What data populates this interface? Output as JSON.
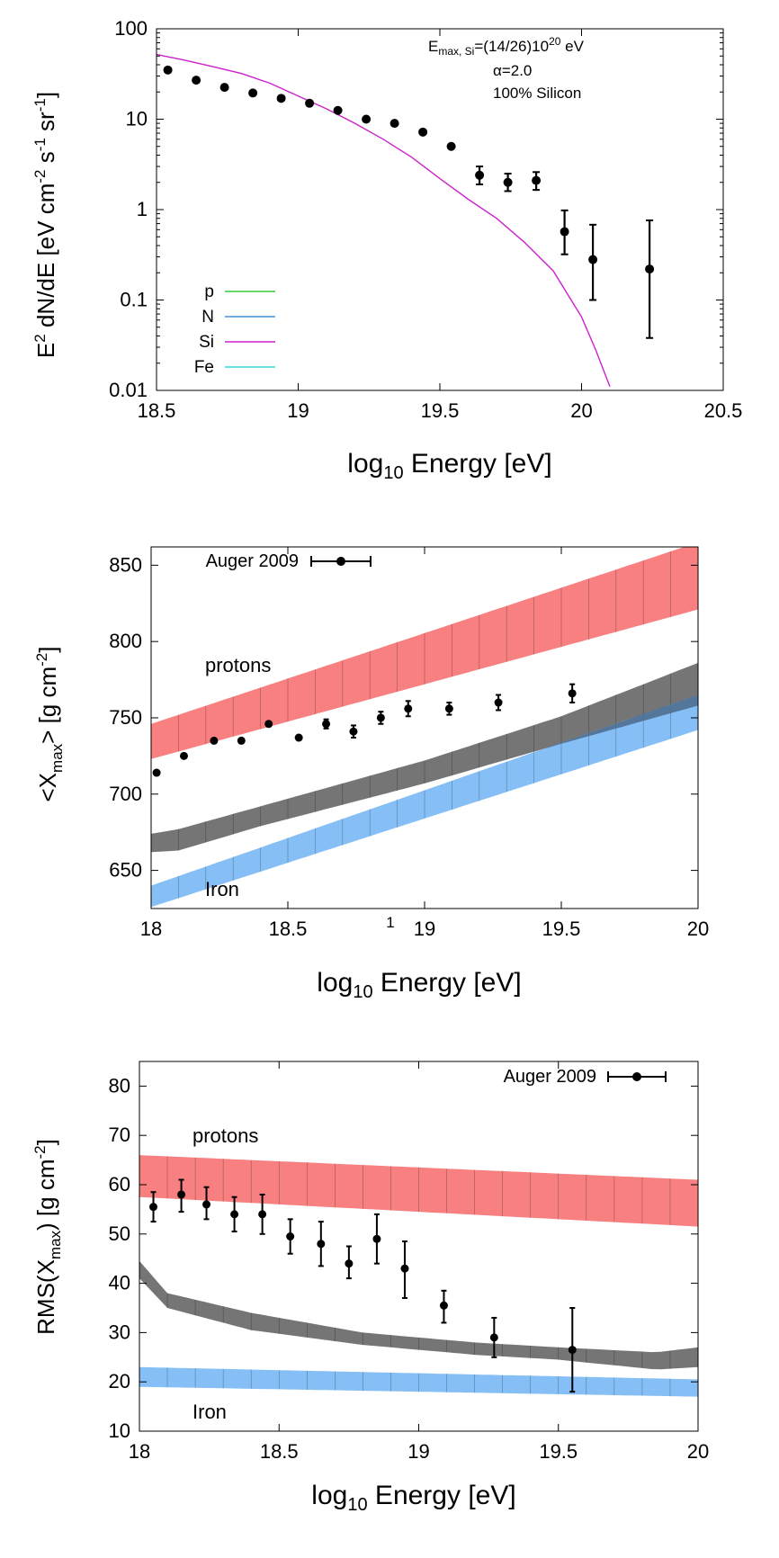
{
  "page_number": "1",
  "colors": {
    "protons_band": "#f87979",
    "mixed_band": "#6e6e6e",
    "iron_band": "#7fbcf5",
    "overlap_band": "#4f6f90",
    "legend_p": "#33cc33",
    "legend_N": "#3c8fdc",
    "legend_Si": "#cc22cc",
    "legend_Fe": "#33d8d8",
    "data_points": "#000000"
  },
  "chart_data": [
    {
      "type": "line",
      "title": "",
      "xlabel_main": "log",
      "xlabel_sub": "10",
      "xlabel_rest": " Energy [eV]",
      "ylabel": "E² dN/dE [eV cm⁻² s⁻¹ sr⁻¹]",
      "xlim": [
        18.5,
        20.5
      ],
      "ylim": [
        0.01,
        100
      ],
      "yscale": "log",
      "xticks": [
        "18.5",
        "19",
        "19.5",
        "20",
        "20.5"
      ],
      "yticks": [
        "0.01",
        "0.1",
        "1",
        "10",
        "100"
      ],
      "annotation_lines": [
        "E(max, Si)=(14/26)10^20 eV",
        "α=2.0",
        "100% Silicon"
      ],
      "legend": [
        {
          "label": "p",
          "color": "#33cc33"
        },
        {
          "label": "N",
          "color": "#3c8fdc"
        },
        {
          "label": "Si",
          "color": "#cc22cc"
        },
        {
          "label": "Fe",
          "color": "#33d8d8"
        }
      ],
      "series": [
        {
          "name": "Si",
          "kind": "curve",
          "x": [
            18.5,
            18.6,
            18.7,
            18.8,
            18.9,
            19.0,
            19.1,
            19.2,
            19.3,
            19.4,
            19.5,
            19.6,
            19.7,
            19.8,
            19.9,
            20.0,
            20.05,
            20.1
          ],
          "y": [
            52,
            45,
            38,
            32,
            25,
            18,
            13,
            9,
            6,
            3.8,
            2.2,
            1.3,
            0.8,
            0.43,
            0.21,
            0.065,
            0.028,
            0.011
          ]
        },
        {
          "name": "data",
          "kind": "points",
          "x": [
            18.54,
            18.64,
            18.74,
            18.84,
            18.94,
            19.04,
            19.14,
            19.24,
            19.34,
            19.44,
            19.54,
            19.64,
            19.74,
            19.84,
            19.94,
            20.04,
            20.24
          ],
          "y": [
            35,
            27,
            22.5,
            19.5,
            17,
            15,
            12.5,
            10,
            9,
            7.2,
            5,
            2.4,
            2.0,
            2.1,
            0.57,
            0.28,
            0.22
          ],
          "err_low": [
            null,
            null,
            null,
            null,
            null,
            null,
            null,
            null,
            null,
            null,
            null,
            1.9,
            1.6,
            1.65,
            0.32,
            0.1,
            0.038
          ],
          "err_high": [
            null,
            null,
            null,
            null,
            null,
            null,
            null,
            null,
            null,
            null,
            null,
            3.0,
            2.5,
            2.6,
            0.98,
            0.68,
            0.76
          ]
        }
      ]
    },
    {
      "type": "scatter",
      "title": "",
      "xlabel_main": "log",
      "xlabel_sub": "10",
      "xlabel_rest": " Energy [eV]",
      "ylabel": "<Xmax> [g cm⁻²]",
      "xlim": [
        18,
        20
      ],
      "ylim": [
        625,
        862
      ],
      "xticks": [
        "18",
        "18.5",
        "19",
        "19.5",
        "20"
      ],
      "yticks": [
        "650",
        "700",
        "750",
        "800",
        "850"
      ],
      "legend": [
        {
          "label": "Auger 2009"
        }
      ],
      "band_labels": {
        "protons": "protons",
        "iron": "Iron"
      },
      "bands": [
        {
          "name": "protons",
          "color": "#f87979",
          "x": [
            18.0,
            20.0
          ],
          "low": [
            723,
            821
          ],
          "high": [
            746,
            865
          ]
        },
        {
          "name": "mixed",
          "color": "#6e6e6e",
          "x": [
            18.0,
            18.1,
            18.4,
            19.0,
            19.5,
            20.0
          ],
          "low": [
            662,
            663,
            679,
            707,
            733,
            758
          ],
          "high": [
            674,
            677,
            692,
            722,
            751,
            786
          ]
        },
        {
          "name": "iron",
          "color": "#7fbcf5",
          "x": [
            18.0,
            20.0
          ],
          "low": [
            626,
            742
          ],
          "high": [
            640,
            765
          ]
        }
      ],
      "series": [
        {
          "name": "Auger 2009",
          "x": [
            18.02,
            18.12,
            18.23,
            18.33,
            18.43,
            18.54,
            18.64,
            18.74,
            18.84,
            18.94,
            19.09,
            19.27,
            19.54
          ],
          "y": [
            714,
            725,
            735,
            735,
            746,
            737,
            746,
            741,
            750,
            756,
            756,
            760,
            766
          ],
          "err": [
            2,
            2,
            2,
            2,
            2,
            2,
            3,
            4,
            4,
            5,
            4,
            5,
            6
          ]
        }
      ]
    },
    {
      "type": "scatter",
      "title": "",
      "xlabel_main": "log",
      "xlabel_sub": "10",
      "xlabel_rest": " Energy [eV]",
      "ylabel": "RMS(Xmax) [g cm⁻²]",
      "xlim": [
        18,
        20
      ],
      "ylim": [
        10,
        85
      ],
      "xticks": [
        "18",
        "18.5",
        "19",
        "19.5",
        "20"
      ],
      "yticks": [
        "10",
        "20",
        "30",
        "40",
        "50",
        "60",
        "70",
        "80"
      ],
      "legend": [
        {
          "label": "Auger 2009"
        }
      ],
      "band_labels": {
        "protons": "protons",
        "iron": "Iron"
      },
      "bands": [
        {
          "name": "protons",
          "color": "#f87979",
          "x": [
            18.0,
            20.0
          ],
          "low": [
            57.5,
            51.5
          ],
          "high": [
            66,
            61
          ]
        },
        {
          "name": "mixed",
          "color": "#6e6e6e",
          "x": [
            18.0,
            18.1,
            18.4,
            18.8,
            19.2,
            19.5,
            19.85,
            20.0
          ],
          "low": [
            41,
            35,
            30.5,
            27.5,
            25.5,
            24.5,
            22.5,
            23
          ],
          "high": [
            44.5,
            38,
            34,
            30,
            28,
            27,
            26,
            27
          ]
        },
        {
          "name": "iron",
          "color": "#7fbcf5",
          "x": [
            18.0,
            20.0
          ],
          "low": [
            19,
            17
          ],
          "high": [
            23,
            20.5
          ]
        }
      ],
      "series": [
        {
          "name": "Auger 2009",
          "x": [
            18.05,
            18.15,
            18.24,
            18.34,
            18.44,
            18.54,
            18.65,
            18.75,
            18.85,
            18.95,
            19.09,
            19.27,
            19.55
          ],
          "y": [
            55.5,
            58,
            56,
            54,
            54,
            49.5,
            48,
            44,
            49,
            43,
            35.5,
            29,
            26.5
          ],
          "err_low": [
            52.5,
            54.5,
            53,
            50.5,
            50,
            46,
            43.5,
            41,
            44,
            37,
            32,
            25,
            18
          ],
          "err_high": [
            58.5,
            61,
            59.5,
            57.5,
            58,
            53,
            52.5,
            47.5,
            54,
            48.5,
            38.5,
            33,
            35
          ]
        }
      ]
    }
  ]
}
